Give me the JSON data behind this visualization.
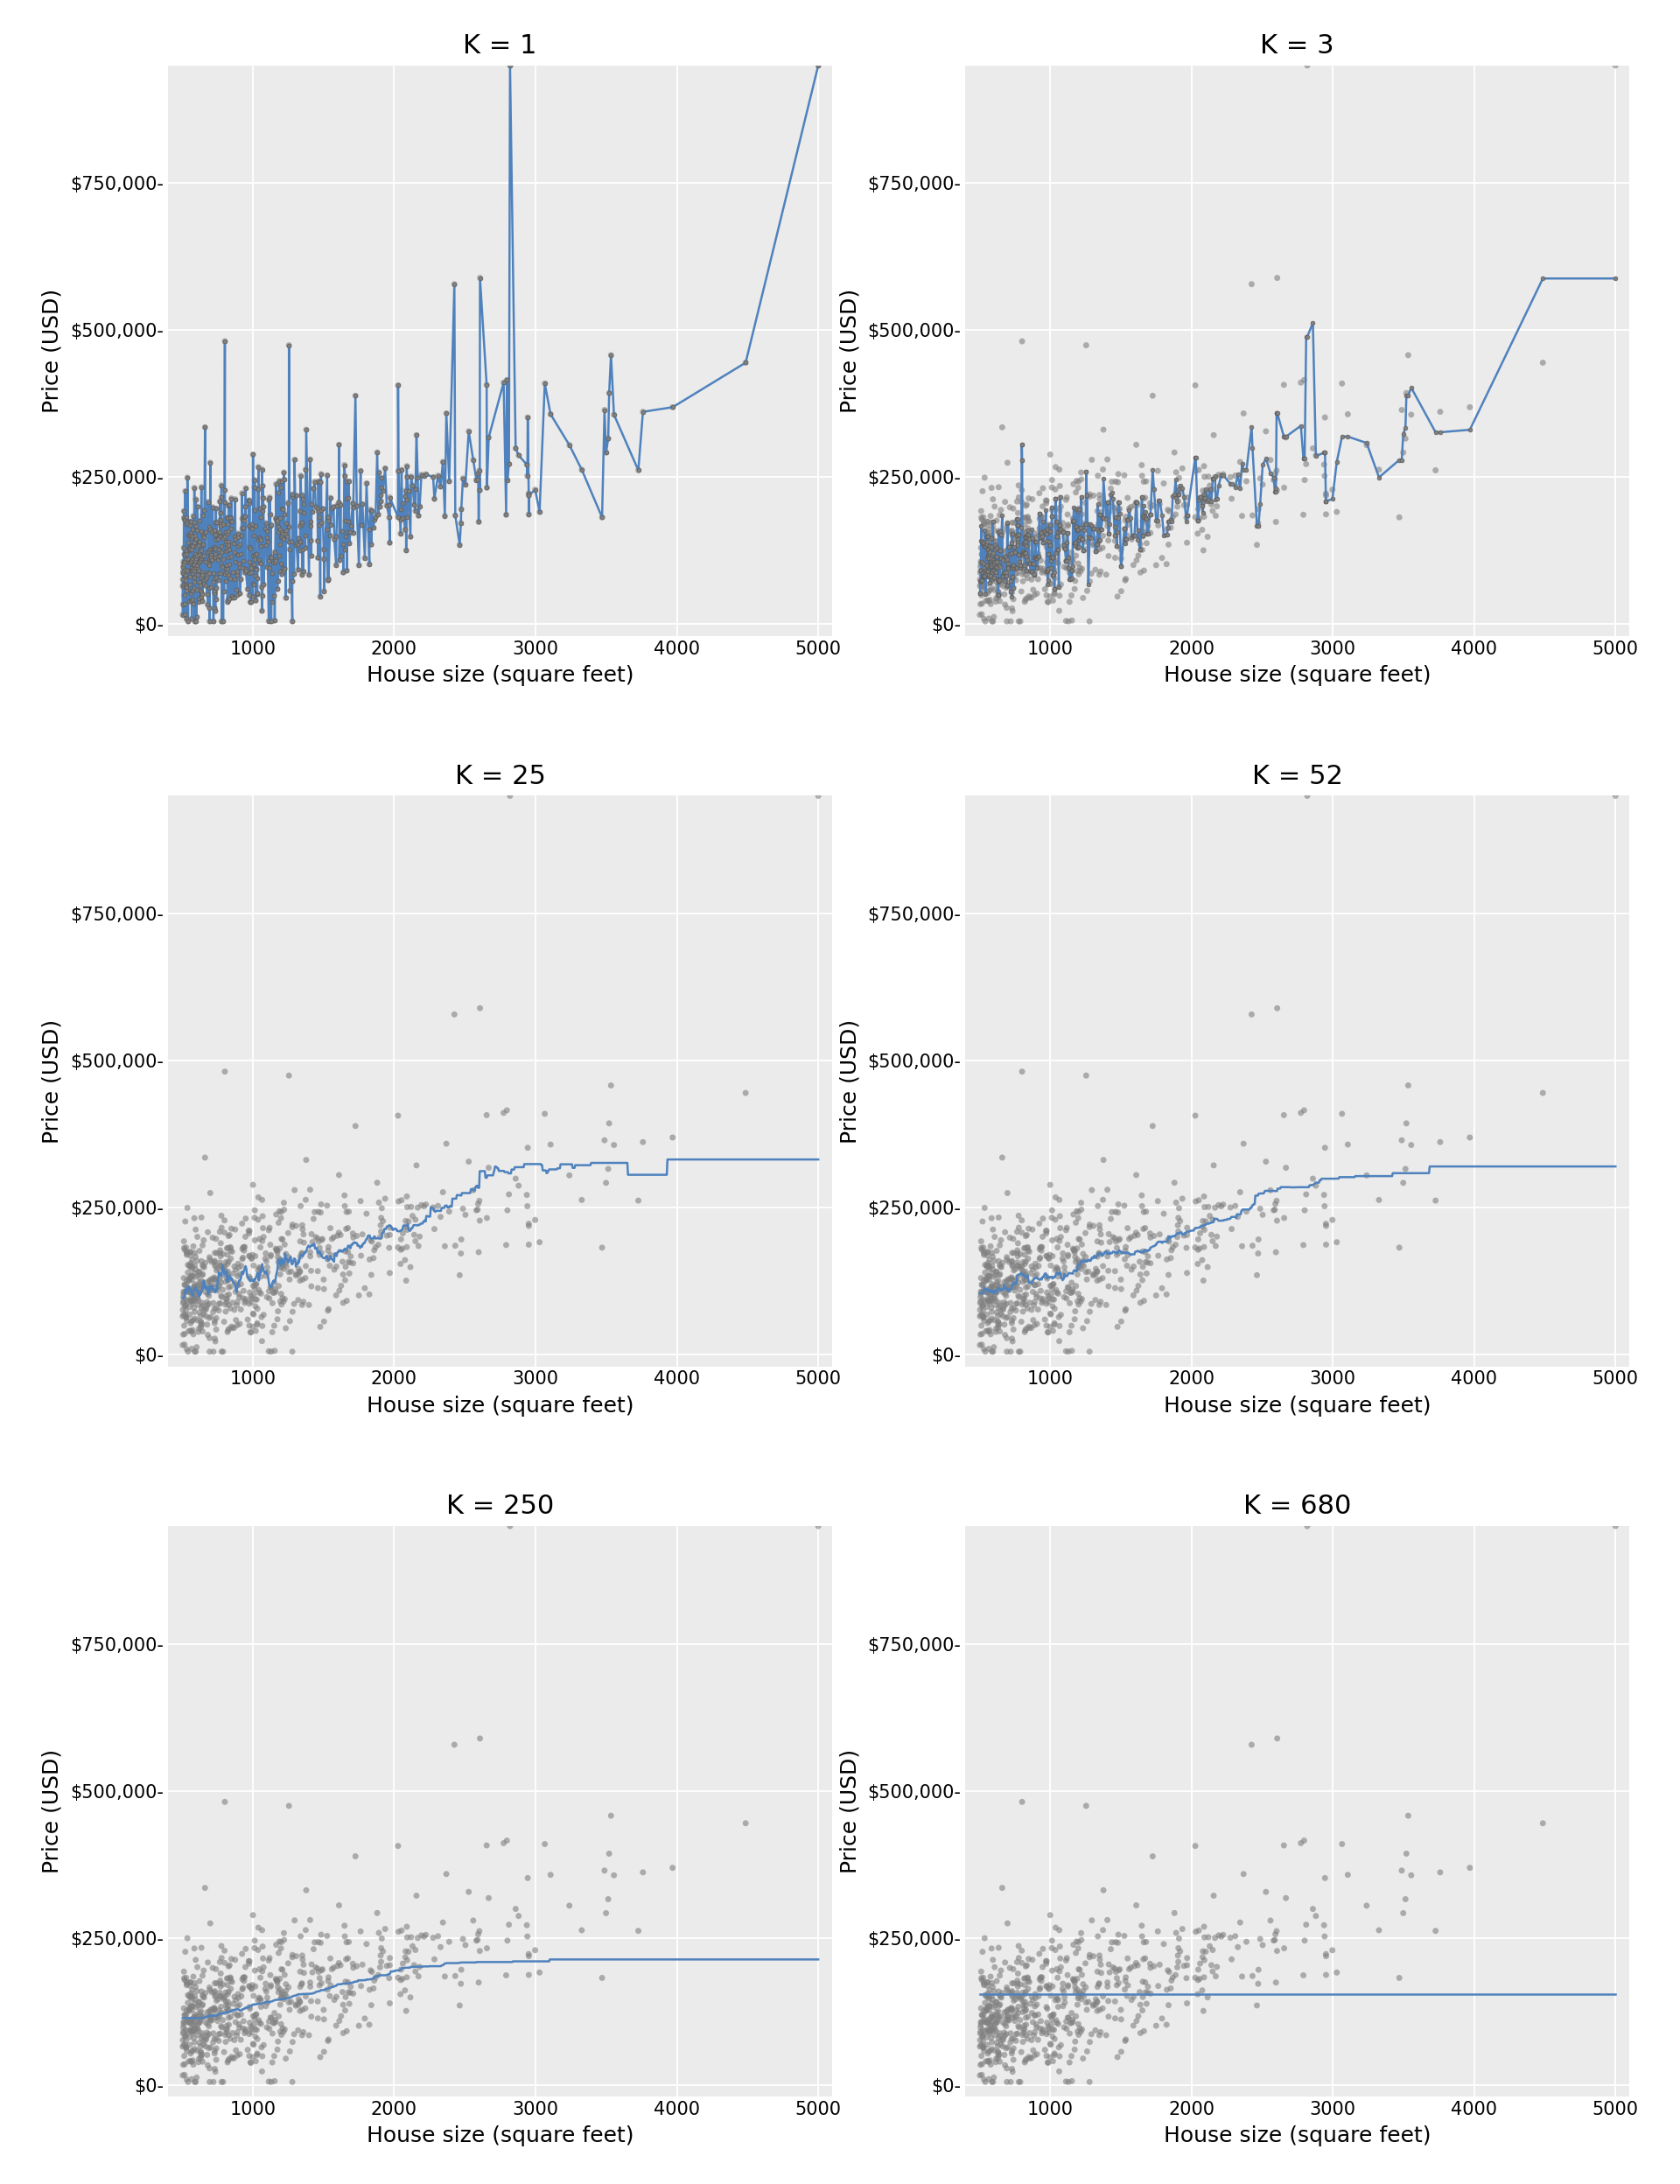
{
  "k_values": [
    1,
    3,
    25,
    52,
    250,
    680
  ],
  "x_label": "House size (square feet)",
  "y_label": "Price (USD)",
  "x_lim": [
    400,
    5100
  ],
  "y_lim": [
    -20000,
    950000
  ],
  "y_ticks": [
    0,
    250000,
    500000,
    750000
  ],
  "y_tick_labels": [
    "$0-",
    "$250,000-",
    "$500,000-",
    "$750,000-"
  ],
  "x_ticks": [
    1000,
    2000,
    3000,
    4000,
    5000
  ],
  "scatter_color": "#808080",
  "scatter_alpha": 0.6,
  "scatter_size": 25,
  "line_color": "#4F82BD",
  "line_width": 1.8,
  "marker_size": 3.5,
  "bg_color": "#EBEBEB",
  "grid_color": "#FFFFFF",
  "title_fontsize": 22,
  "label_fontsize": 18,
  "tick_fontsize": 15,
  "fig_bg_color": "#FFFFFF",
  "random_seed": 42,
  "n_points": 680
}
